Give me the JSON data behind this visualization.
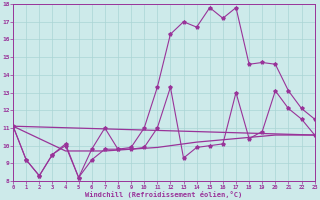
{
  "background_color": "#cdeaea",
  "line_color": "#993399",
  "grid_color": "#aad5d5",
  "xlabel": "Windchill (Refroidissement éolien,°C)",
  "xmin": 0,
  "xmax": 23,
  "ymin": 8,
  "ymax": 18,
  "yticks": [
    8,
    9,
    10,
    11,
    12,
    13,
    14,
    15,
    16,
    17,
    18
  ],
  "xticks": [
    0,
    1,
    2,
    3,
    4,
    5,
    6,
    7,
    8,
    9,
    10,
    11,
    12,
    13,
    14,
    15,
    16,
    17,
    18,
    19,
    20,
    21,
    22,
    23
  ],
  "line1_x": [
    0,
    1,
    2,
    3,
    4,
    5,
    6,
    7,
    8,
    9,
    10,
    11,
    12,
    13,
    14,
    15,
    16,
    17,
    18,
    19,
    20,
    21,
    22,
    23
  ],
  "line1_y": [
    11.1,
    9.2,
    8.3,
    9.5,
    10.1,
    8.2,
    9.8,
    11.0,
    9.8,
    9.9,
    11.0,
    13.3,
    16.3,
    17.0,
    16.7,
    17.8,
    17.2,
    17.8,
    14.6,
    14.7,
    14.6,
    13.1,
    12.1,
    11.5
  ],
  "line2_x": [
    0,
    1,
    2,
    3,
    4,
    5,
    6,
    7,
    8,
    9,
    10,
    11,
    12,
    13,
    14,
    15,
    16,
    17,
    18,
    19,
    20,
    21,
    22,
    23
  ],
  "line2_y": [
    11.1,
    9.2,
    8.3,
    9.5,
    10.0,
    8.2,
    9.2,
    9.8,
    9.8,
    9.8,
    9.9,
    11.0,
    13.3,
    9.3,
    9.9,
    10.0,
    10.1,
    13.0,
    10.4,
    10.8,
    13.1,
    12.1,
    11.5,
    10.6
  ],
  "line3_x": [
    0,
    23
  ],
  "line3_y": [
    11.1,
    10.6
  ],
  "line4_x": [
    0,
    4,
    7,
    9,
    11,
    14,
    17,
    20,
    23
  ],
  "line4_y": [
    11.1,
    9.7,
    9.7,
    9.8,
    9.9,
    10.2,
    10.4,
    10.6,
    10.6
  ]
}
